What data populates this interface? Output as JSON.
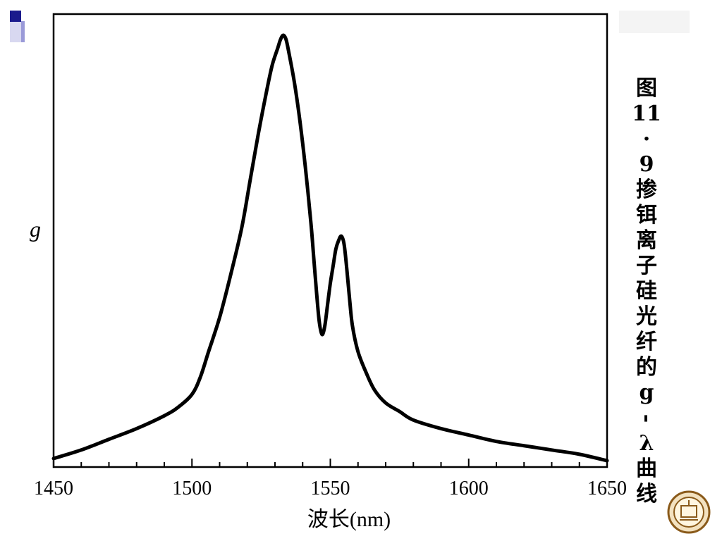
{
  "caption": "图11·9 掺铒离子硅光纤的g-λ曲线",
  "chart_data": {
    "type": "line",
    "xlabel": "波长(nm)",
    "ylabel": "g",
    "xlim": [
      1450,
      1650
    ],
    "xticks": [
      "1450",
      "1500",
      "1550",
      "1600",
      "1650"
    ],
    "y_ticks_shown": false,
    "grid": false,
    "series": [
      {
        "color": "#000000",
        "x": [
          1450,
          1460,
          1470,
          1480,
          1490,
          1495,
          1500,
          1503,
          1506,
          1510,
          1514,
          1518,
          1521,
          1524,
          1527,
          1529,
          1531,
          1532,
          1533,
          1534,
          1535,
          1537,
          1539,
          1541,
          1543,
          1544,
          1545,
          1546,
          1547,
          1548,
          1549,
          1550,
          1551,
          1552,
          1553,
          1554,
          1555,
          1556,
          1557,
          1558,
          1560,
          1563,
          1566,
          1570,
          1575,
          1580,
          1590,
          1600,
          1610,
          1620,
          1630,
          1640,
          1650
        ],
        "y": [
          0.01,
          0.03,
          0.055,
          0.08,
          0.11,
          0.13,
          0.16,
          0.2,
          0.26,
          0.34,
          0.44,
          0.55,
          0.66,
          0.77,
          0.87,
          0.93,
          0.97,
          0.99,
          1.0,
          0.99,
          0.96,
          0.89,
          0.8,
          0.69,
          0.56,
          0.48,
          0.4,
          0.33,
          0.3,
          0.32,
          0.37,
          0.42,
          0.46,
          0.5,
          0.52,
          0.53,
          0.51,
          0.45,
          0.38,
          0.32,
          0.26,
          0.21,
          0.17,
          0.14,
          0.12,
          0.1,
          0.08,
          0.065,
          0.05,
          0.04,
          0.03,
          0.02,
          0.005
        ]
      }
    ]
  },
  "colors": {
    "deco_primary": "#1a1a8c",
    "deco_secondary": "#8a8ad0",
    "curve": "#000000"
  },
  "icons": {
    "logo": "university-seal-icon"
  }
}
